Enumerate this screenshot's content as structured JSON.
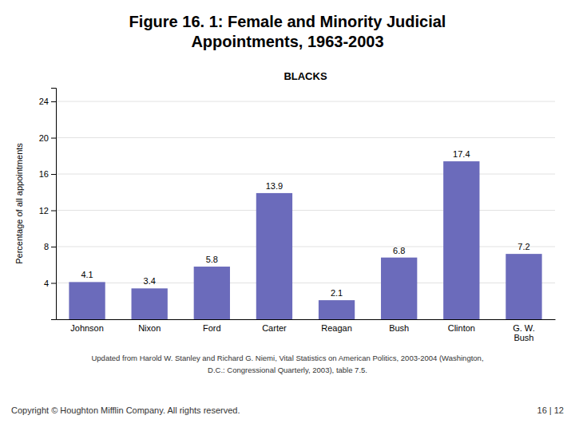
{
  "chart_data": {
    "type": "bar",
    "title": [
      "Figure 16. 1: Female and Minority Judicial",
      "Appointments, 1963-2003"
    ],
    "subtitle": "BLACKS",
    "ylabel": "Percentage of all appointments",
    "categories": [
      "Johnson",
      "Nixon",
      "Ford",
      "Carter",
      "Reagan",
      "Bush",
      "Clinton",
      "G. W.\nBush"
    ],
    "values": [
      4.1,
      3.4,
      5.8,
      13.9,
      2.1,
      6.8,
      17.4,
      7.2
    ],
    "color": "#6b6bbb",
    "ylim": [
      0,
      25.5
    ],
    "yticks": [
      4,
      8,
      12,
      16,
      20,
      24
    ],
    "grid": true,
    "data_labels": true,
    "annotations": [
      "Updated from Harold W. Stanley and Richard G. Niemi, Vital Statistics on American Politics, 2003-2004 (Washington,",
      "D.C.: Congressional Quarterly, 2003), table 7.5.",
      "Copyright © Houghton Mifflin Company. All rights reserved.",
      "16 | 12"
    ]
  }
}
